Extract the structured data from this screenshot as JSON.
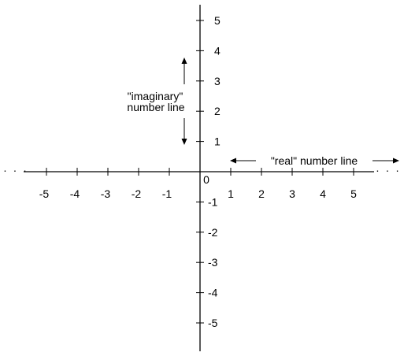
{
  "diagram": {
    "real_axis": {
      "ticks": [
        -5,
        -4,
        -3,
        -2,
        -1,
        1,
        2,
        3,
        4,
        5
      ],
      "tick_labels": [
        "-5",
        "-4",
        "-3",
        "-2",
        "-1",
        "1",
        "2",
        "3",
        "4",
        "5"
      ],
      "origin_label": "0",
      "caption": "\"real\" number line",
      "continuation_left": "· · ·",
      "continuation_right": "· · ·"
    },
    "imaginary_axis": {
      "ticks": [
        5,
        4,
        3,
        2,
        1,
        -1,
        -2,
        -3,
        -4,
        -5
      ],
      "tick_labels": [
        "5",
        "4",
        "3",
        "2",
        "1",
        "-1",
        "-2",
        "-3",
        "-4",
        "-5"
      ],
      "caption_line1": "\"imaginary\"",
      "caption_line2": "number line"
    }
  }
}
